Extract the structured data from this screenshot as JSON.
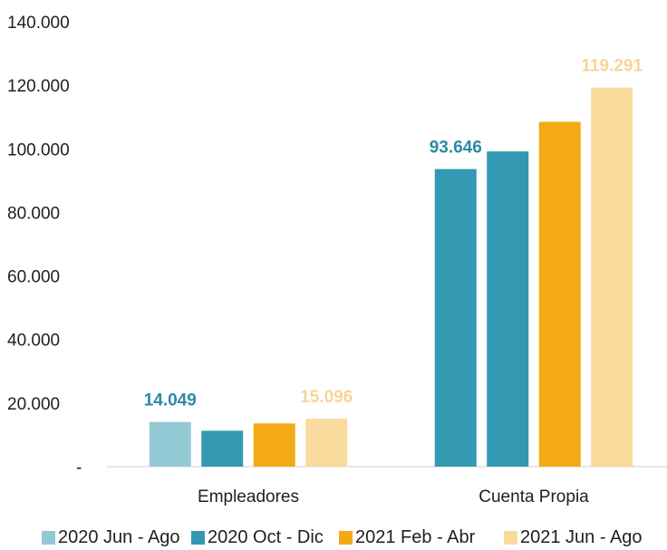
{
  "chart_data": {
    "type": "bar",
    "categories": [
      "Empleadores",
      "Cuenta Propia"
    ],
    "series": [
      {
        "name": "2020 Jun - Ago",
        "values": [
          14049,
          93646
        ],
        "color": "#93C9D5"
      },
      {
        "name": "2020 Oct - Dic",
        "values": [
          11300,
          99200
        ],
        "color": "#3399B2"
      },
      {
        "name": "2021 Feb - Abr",
        "values": [
          13600,
          108500
        ],
        "color": "#F4AA17"
      },
      {
        "name": "2021 Jun - Ago",
        "values": [
          15096,
          119291
        ],
        "color": "#FADB9E"
      }
    ],
    "bar_colors_override": [
      [
        "#93C9D5",
        "#3399B2",
        "#F4AA17",
        "#FADB9E"
      ],
      [
        "#3399B2",
        "#3399B2",
        "#F4AA17",
        "#FADB9E"
      ]
    ],
    "data_labels": [
      {
        "category_index": 0,
        "series_index": 0,
        "text": "14.049",
        "color": "#2E8AA3"
      },
      {
        "category_index": 0,
        "series_index": 3,
        "text": "15.096",
        "color": "#F8D596"
      },
      {
        "category_index": 1,
        "series_index": 0,
        "text": "93.646",
        "color": "#2E8AA3"
      },
      {
        "category_index": 1,
        "series_index": 3,
        "text": "119.291",
        "color": "#F8D596"
      }
    ],
    "yticks": [
      {
        "value": 0,
        "label": "-"
      },
      {
        "value": 20000,
        "label": "20.000"
      },
      {
        "value": 40000,
        "label": "40.000"
      },
      {
        "value": 60000,
        "label": "60.000"
      },
      {
        "value": 80000,
        "label": "80.000"
      },
      {
        "value": 100000,
        "label": "100.000"
      },
      {
        "value": 120000,
        "label": "120.000"
      },
      {
        "value": 140000,
        "label": "140.000"
      }
    ],
    "ylim": [
      0,
      140000
    ],
    "legend_position": "bottom",
    "grid": false
  }
}
